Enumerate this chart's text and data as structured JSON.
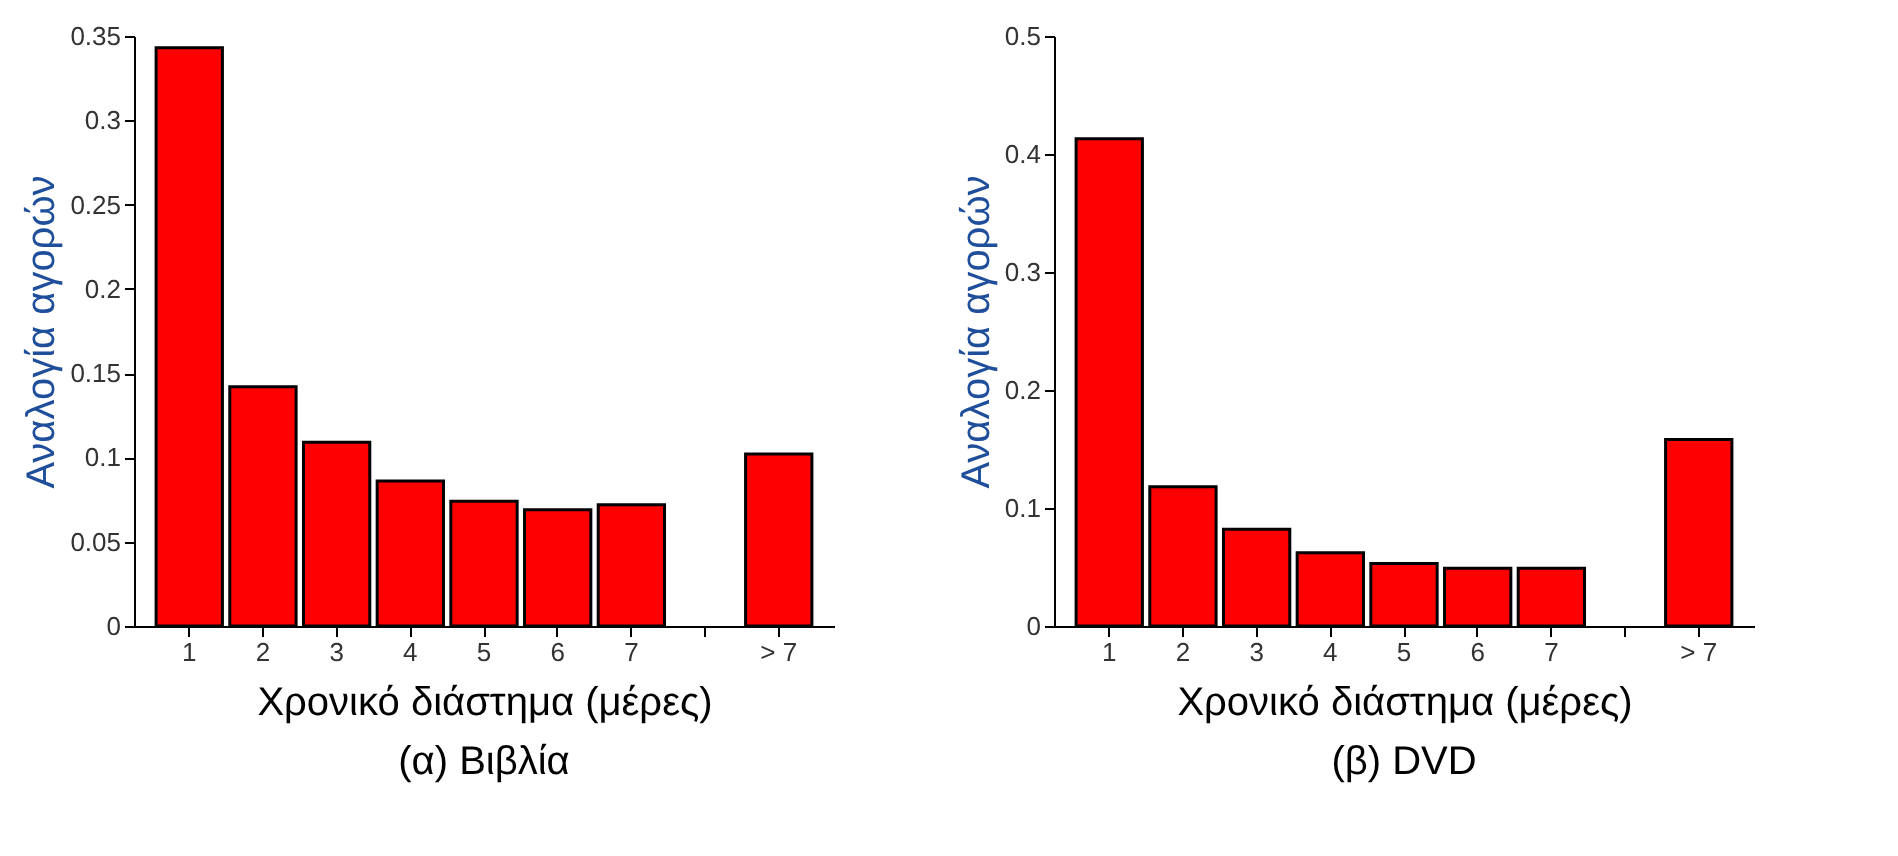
{
  "chart_data": [
    {
      "type": "bar",
      "title": "(α) Βιβλία",
      "xlabel": "Χρονικό διάστημα (μέρες)",
      "ylabel": "Αναλογία αγορών",
      "categories": [
        "1",
        "2",
        "3",
        "4",
        "5",
        "6",
        "7",
        null,
        "> 7"
      ],
      "values": [
        0.343,
        0.142,
        0.109,
        0.086,
        0.074,
        0.069,
        0.072,
        null,
        0.102
      ],
      "color": "#ff0000",
      "ylim": [
        0,
        0.35
      ],
      "yticks": [
        0,
        0.05,
        0.1,
        0.15,
        0.2,
        0.25,
        0.3,
        0.35
      ],
      "grid": false
    },
    {
      "type": "bar",
      "title": "(β) DVD",
      "xlabel": "Χρονικό διάστημα (μέρες)",
      "ylabel": "Αναλογία αγορών",
      "categories": [
        "1",
        "2",
        "3",
        "4",
        "5",
        "6",
        "7",
        null,
        "> 7"
      ],
      "values": [
        0.413,
        0.118,
        0.082,
        0.062,
        0.053,
        0.049,
        0.049,
        null,
        0.158
      ],
      "color": "#ff0000",
      "ylim": [
        0,
        0.5
      ],
      "yticks": [
        0,
        0.1,
        0.2,
        0.3,
        0.4,
        0.5
      ],
      "grid": false
    }
  ]
}
